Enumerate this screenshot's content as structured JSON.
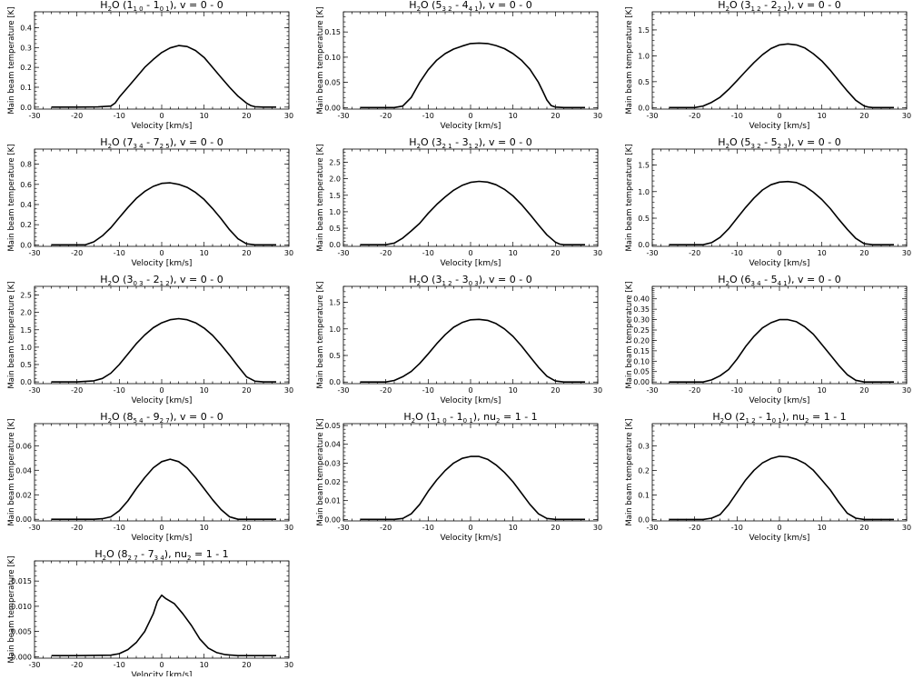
{
  "figure": {
    "xlabel": "Velocity [km/s]",
    "ylabel": "Main beam temperature [K]"
  },
  "chart_data": [
    {
      "type": "line",
      "title": "H₂O (1₁₀ - 1₀₁), v = 0 - 0",
      "title_parts": {
        "pre": "H",
        "sub1": "2",
        "mid": "O (1",
        "sub2": "1 0",
        "mid2": " - 1",
        "sub3": "0 1",
        "post": "), v = 0 - 0"
      },
      "xlabel": "Velocity [km/s]",
      "ylabel": "Main beam temperature [K]",
      "xlim": [
        -30,
        30
      ],
      "ylim": [
        -0.01,
        0.48
      ],
      "xticks": [
        -30,
        -20,
        -10,
        0,
        10,
        20,
        30
      ],
      "yticks": [
        0.0,
        0.1,
        0.2,
        0.3,
        0.4
      ],
      "ytick_labels": [
        "0.0",
        "0.1",
        "0.2",
        "0.3",
        "0.4"
      ],
      "x": [
        -26,
        -20,
        -15,
        -12,
        -11,
        -10,
        -8,
        -6,
        -4,
        -2,
        0,
        2,
        4,
        6,
        8,
        10,
        12,
        14,
        16,
        18,
        20,
        21,
        22,
        24,
        27
      ],
      "y": [
        0.0,
        0.0,
        0.001,
        0.005,
        0.02,
        0.05,
        0.1,
        0.15,
        0.2,
        0.24,
        0.275,
        0.298,
        0.31,
        0.305,
        0.285,
        0.25,
        0.2,
        0.15,
        0.1,
        0.055,
        0.02,
        0.008,
        0.002,
        0.0,
        0.0
      ]
    },
    {
      "type": "line",
      "title": "H₂O (5₃₂ - 4₄₁), v = 0 - 0",
      "title_parts": {
        "pre": "H",
        "sub1": "2",
        "mid": "O (5",
        "sub2": "3 2",
        "mid2": " - 4",
        "sub3": "4 1",
        "post": "), v = 0 - 0"
      },
      "xlabel": "Velocity [km/s]",
      "ylabel": "Main beam temperature [K]",
      "xlim": [
        -30,
        30
      ],
      "ylim": [
        -0.003,
        0.19
      ],
      "xticks": [
        -30,
        -20,
        -10,
        0,
        10,
        20,
        30
      ],
      "yticks": [
        0.0,
        0.05,
        0.1,
        0.15
      ],
      "ytick_labels": [
        "0.00",
        "0.05",
        "0.10",
        "0.15"
      ],
      "x": [
        -26,
        -18,
        -16,
        -14,
        -12,
        -10,
        -8,
        -6,
        -4,
        -2,
        0,
        2,
        4,
        6,
        8,
        10,
        12,
        14,
        16,
        17,
        18,
        19,
        20,
        22,
        27
      ],
      "y": [
        0.0,
        0.0,
        0.003,
        0.02,
        0.05,
        0.075,
        0.094,
        0.107,
        0.116,
        0.122,
        0.127,
        0.128,
        0.127,
        0.123,
        0.117,
        0.107,
        0.094,
        0.076,
        0.05,
        0.033,
        0.015,
        0.004,
        0.001,
        0.0,
        0.0
      ]
    },
    {
      "type": "line",
      "title": "H₂O (3₁₂ - 2₂₁), v = 0 - 0",
      "title_parts": {
        "pre": "H",
        "sub1": "2",
        "mid": "O (3",
        "sub2": "1 2",
        "mid2": " - 2",
        "sub3": "2 1",
        "post": "), v = 0 - 0"
      },
      "xlabel": "Velocity [km/s]",
      "ylabel": "Main beam temperature [K]",
      "xlim": [
        -30,
        30
      ],
      "ylim": [
        -0.03,
        1.85
      ],
      "xticks": [
        -30,
        -20,
        -10,
        0,
        10,
        20,
        30
      ],
      "yticks": [
        0.0,
        0.5,
        1.0,
        1.5
      ],
      "ytick_labels": [
        "0.0",
        "0.5",
        "1.0",
        "1.5"
      ],
      "x": [
        -26,
        -20,
        -18,
        -16,
        -14,
        -12,
        -10,
        -8,
        -6,
        -4,
        -2,
        0,
        2,
        4,
        6,
        8,
        10,
        12,
        14,
        16,
        18,
        20,
        21,
        22,
        24,
        27
      ],
      "y": [
        0.0,
        0.0,
        0.03,
        0.1,
        0.2,
        0.35,
        0.52,
        0.7,
        0.87,
        1.02,
        1.14,
        1.21,
        1.23,
        1.21,
        1.15,
        1.04,
        0.9,
        0.72,
        0.52,
        0.32,
        0.14,
        0.03,
        0.008,
        0.0,
        0.0,
        0.0
      ]
    },
    {
      "type": "line",
      "title": "H₂O (7₃₄ - 7₂₅), v = 0 - 0",
      "title_parts": {
        "pre": "H",
        "sub1": "2",
        "mid": "O (7",
        "sub2": "3 4",
        "mid2": " - 7",
        "sub3": "2 5",
        "post": "), v = 0 - 0"
      },
      "xlabel": "Velocity [km/s]",
      "ylabel": "Main beam temperature [K]",
      "xlim": [
        -30,
        30
      ],
      "ylim": [
        -0.015,
        0.95
      ],
      "xticks": [
        -30,
        -20,
        -10,
        0,
        10,
        20,
        30
      ],
      "yticks": [
        0.0,
        0.2,
        0.4,
        0.6,
        0.8
      ],
      "ytick_labels": [
        "0.0",
        "0.2",
        "0.4",
        "0.6",
        "0.8"
      ],
      "x": [
        -26,
        -18,
        -16,
        -14,
        -12,
        -10,
        -8,
        -6,
        -4,
        -2,
        0,
        2,
        4,
        6,
        8,
        10,
        12,
        14,
        16,
        18,
        20,
        22,
        24,
        27
      ],
      "y": [
        0.0,
        0.0,
        0.03,
        0.09,
        0.17,
        0.27,
        0.37,
        0.46,
        0.53,
        0.58,
        0.61,
        0.615,
        0.6,
        0.57,
        0.52,
        0.45,
        0.36,
        0.26,
        0.15,
        0.06,
        0.01,
        0.0,
        0.0,
        0.0
      ]
    },
    {
      "type": "line",
      "title": "H₂O (3₂₁ - 3₁₂), v = 0 - 0",
      "title_parts": {
        "pre": "H",
        "sub1": "2",
        "mid": "O (3",
        "sub2": "2 1",
        "mid2": " - 3",
        "sub3": "1 2",
        "post": "), v = 0 - 0"
      },
      "xlabel": "Velocity [km/s]",
      "ylabel": "Main beam temperature [K]",
      "xlim": [
        -30,
        30
      ],
      "ylim": [
        -0.05,
        2.9
      ],
      "xticks": [
        -30,
        -20,
        -10,
        0,
        10,
        20,
        30
      ],
      "yticks": [
        0.0,
        0.5,
        1.0,
        1.5,
        2.0,
        2.5
      ],
      "ytick_labels": [
        "0.0",
        "0.5",
        "1.0",
        "1.5",
        "2.0",
        "2.5"
      ],
      "x": [
        -26,
        -20,
        -18,
        -16,
        -14,
        -12,
        -10,
        -8,
        -6,
        -4,
        -2,
        0,
        2,
        4,
        6,
        8,
        10,
        12,
        14,
        16,
        18,
        20,
        21,
        22,
        24,
        27
      ],
      "y": [
        0.0,
        0.0,
        0.05,
        0.2,
        0.42,
        0.65,
        0.95,
        1.22,
        1.45,
        1.65,
        1.8,
        1.89,
        1.92,
        1.9,
        1.82,
        1.68,
        1.48,
        1.22,
        0.92,
        0.6,
        0.3,
        0.08,
        0.02,
        0.0,
        0.0,
        0.0
      ]
    },
    {
      "type": "line",
      "title": "H₂O (5₃₂ - 5₂₃), v = 0 - 0",
      "title_parts": {
        "pre": "H",
        "sub1": "2",
        "mid": "O (5",
        "sub2": "3 2",
        "mid2": " - 5",
        "sub3": "2 3",
        "post": "), v = 0 - 0"
      },
      "xlabel": "Velocity [km/s]",
      "ylabel": "Main beam temperature [K]",
      "xlim": [
        -30,
        30
      ],
      "ylim": [
        -0.03,
        1.8
      ],
      "xticks": [
        -30,
        -20,
        -10,
        0,
        10,
        20,
        30
      ],
      "yticks": [
        0.0,
        0.5,
        1.0,
        1.5
      ],
      "ytick_labels": [
        "0.0",
        "0.5",
        "1.0",
        "1.5"
      ],
      "x": [
        -26,
        -18,
        -16,
        -14,
        -12,
        -10,
        -8,
        -6,
        -4,
        -2,
        0,
        2,
        4,
        6,
        8,
        10,
        12,
        14,
        16,
        18,
        20,
        22,
        24,
        27
      ],
      "y": [
        0.0,
        0.0,
        0.04,
        0.14,
        0.3,
        0.5,
        0.7,
        0.88,
        1.03,
        1.13,
        1.18,
        1.19,
        1.17,
        1.1,
        0.99,
        0.85,
        0.68,
        0.48,
        0.29,
        0.12,
        0.02,
        0.0,
        0.0,
        0.0
      ]
    },
    {
      "type": "line",
      "title": "H₂O (3₀₃ - 2₁₂), v = 0 - 0",
      "title_parts": {
        "pre": "H",
        "sub1": "2",
        "mid": "O (3",
        "sub2": "0 3",
        "mid2": " - 2",
        "sub3": "1 2",
        "post": "), v = 0 - 0"
      },
      "xlabel": "Velocity [km/s]",
      "ylabel": "Main beam temperature [K]",
      "xlim": [
        -30,
        30
      ],
      "ylim": [
        -0.05,
        2.75
      ],
      "xticks": [
        -30,
        -20,
        -10,
        0,
        10,
        20,
        30
      ],
      "yticks": [
        0.0,
        0.5,
        1.0,
        1.5,
        2.0,
        2.5
      ],
      "ytick_labels": [
        "0.0",
        "0.5",
        "1.0",
        "1.5",
        "2.0",
        "2.5"
      ],
      "x": [
        -26,
        -20,
        -16,
        -14,
        -12,
        -10,
        -8,
        -6,
        -4,
        -2,
        0,
        2,
        4,
        6,
        8,
        10,
        12,
        14,
        16,
        18,
        20,
        22,
        24,
        27
      ],
      "y": [
        0.0,
        0.0,
        0.03,
        0.1,
        0.25,
        0.5,
        0.8,
        1.1,
        1.35,
        1.56,
        1.7,
        1.79,
        1.82,
        1.79,
        1.7,
        1.55,
        1.34,
        1.07,
        0.77,
        0.45,
        0.15,
        0.02,
        0.0,
        0.0
      ]
    },
    {
      "type": "line",
      "title": "H₂O (3₁₂ - 3₀₃), v = 0 - 0",
      "title_parts": {
        "pre": "H",
        "sub1": "2",
        "mid": "O (3",
        "sub2": "1 2",
        "mid2": " - 3",
        "sub3": "0 3",
        "post": "), v = 0 - 0"
      },
      "xlabel": "Velocity [km/s]",
      "ylabel": "Main beam temperature [K]",
      "xlim": [
        -30,
        30
      ],
      "ylim": [
        -0.03,
        1.8
      ],
      "xticks": [
        -30,
        -20,
        -10,
        0,
        10,
        20,
        30
      ],
      "yticks": [
        0.0,
        0.5,
        1.0,
        1.5
      ],
      "ytick_labels": [
        "0.0",
        "0.5",
        "1.0",
        "1.5"
      ],
      "x": [
        -26,
        -20,
        -18,
        -16,
        -14,
        -12,
        -10,
        -8,
        -6,
        -4,
        -2,
        0,
        2,
        4,
        6,
        8,
        10,
        12,
        14,
        16,
        18,
        20,
        22,
        24,
        27
      ],
      "y": [
        0.0,
        0.0,
        0.03,
        0.1,
        0.2,
        0.35,
        0.53,
        0.72,
        0.89,
        1.03,
        1.12,
        1.17,
        1.18,
        1.16,
        1.1,
        1.0,
        0.86,
        0.68,
        0.48,
        0.28,
        0.11,
        0.02,
        0.0,
        0.0,
        0.0
      ]
    },
    {
      "type": "line",
      "title": "H₂O (6₃₄ - 5₄₁), v = 0 - 0",
      "title_parts": {
        "pre": "H",
        "sub1": "2",
        "mid": "O (6",
        "sub2": "3 4",
        "mid2": " - 5",
        "sub3": "4 1",
        "post": "), v = 0 - 0"
      },
      "xlabel": "Velocity [km/s]",
      "ylabel": "Main beam temperature [K]",
      "xlim": [
        -30,
        30
      ],
      "ylim": [
        -0.008,
        0.46
      ],
      "xticks": [
        -30,
        -20,
        -10,
        0,
        10,
        20,
        30
      ],
      "yticks": [
        0.0,
        0.05,
        0.1,
        0.15,
        0.2,
        0.25,
        0.3,
        0.35,
        0.4
      ],
      "ytick_labels": [
        "0.00",
        "0.05",
        "0.10",
        "0.15",
        "0.20",
        "0.25",
        "0.30",
        "0.35",
        "0.40"
      ],
      "x": [
        -26,
        -18,
        -16,
        -14,
        -12,
        -10,
        -8,
        -6,
        -4,
        -2,
        0,
        2,
        4,
        6,
        8,
        10,
        12,
        14,
        16,
        18,
        20,
        22,
        24,
        27
      ],
      "y": [
        0.0,
        0.0,
        0.01,
        0.03,
        0.06,
        0.11,
        0.17,
        0.22,
        0.26,
        0.285,
        0.3,
        0.3,
        0.29,
        0.265,
        0.23,
        0.18,
        0.13,
        0.08,
        0.035,
        0.008,
        0.0,
        0.0,
        0.0,
        0.0
      ]
    },
    {
      "type": "line",
      "title": "H₂O (8₅₄ - 9₂₇), v = 0 - 0",
      "title_parts": {
        "pre": "H",
        "sub1": "2",
        "mid": "O (8",
        "sub2": "5 4",
        "mid2": " - 9",
        "sub3": "2 7",
        "post": "), v = 0 - 0"
      },
      "xlabel": "Velocity [km/s]",
      "ylabel": "Main beam temperature [K]",
      "xlim": [
        -30,
        30
      ],
      "ylim": [
        -0.0013,
        0.078
      ],
      "xticks": [
        -30,
        -20,
        -10,
        0,
        10,
        20,
        30
      ],
      "yticks": [
        0.0,
        0.02,
        0.04,
        0.06
      ],
      "ytick_labels": [
        "0.00",
        "0.02",
        "0.04",
        "0.06"
      ],
      "x": [
        -26,
        -16,
        -14,
        -12,
        -10,
        -8,
        -6,
        -4,
        -2,
        0,
        2,
        4,
        6,
        8,
        10,
        12,
        14,
        16,
        18,
        20,
        22,
        27
      ],
      "y": [
        0.0,
        0.0,
        0.0005,
        0.002,
        0.007,
        0.015,
        0.025,
        0.034,
        0.042,
        0.047,
        0.049,
        0.047,
        0.042,
        0.034,
        0.025,
        0.016,
        0.008,
        0.002,
        0.0,
        0.0,
        0.0,
        0.0
      ]
    },
    {
      "type": "line",
      "title": "H₂O (1₁₀ - 1₀₁), nu₂ = 1 - 1",
      "title_parts": {
        "pre": "H",
        "sub1": "2",
        "mid": "O (1",
        "sub2": "1 0",
        "mid2": " - 1",
        "sub3": "0 1",
        "post": "), nu",
        "sub4": "2",
        "post2": " = 1 - 1"
      },
      "xlabel": "Velocity [km/s]",
      "ylabel": "Main beam temperature [K]",
      "xlim": [
        -30,
        30
      ],
      "ylim": [
        -0.0008,
        0.051
      ],
      "xticks": [
        -30,
        -20,
        -10,
        0,
        10,
        20,
        30
      ],
      "yticks": [
        0.0,
        0.01,
        0.02,
        0.03,
        0.04,
        0.05
      ],
      "ytick_labels": [
        "0.00",
        "0.01",
        "0.02",
        "0.03",
        "0.04",
        "0.05"
      ],
      "x": [
        -26,
        -18,
        -16,
        -14,
        -12,
        -10,
        -8,
        -6,
        -4,
        -2,
        0,
        2,
        4,
        6,
        8,
        10,
        12,
        14,
        16,
        18,
        20,
        22,
        27
      ],
      "y": [
        0.0,
        0.0,
        0.0005,
        0.003,
        0.008,
        0.015,
        0.021,
        0.026,
        0.03,
        0.0325,
        0.0335,
        0.0335,
        0.032,
        0.029,
        0.025,
        0.02,
        0.014,
        0.008,
        0.003,
        0.0005,
        0.0,
        0.0,
        0.0
      ]
    },
    {
      "type": "line",
      "title": "H₂O (2₁₂ - 1₀₁), nu₂ = 1 - 1",
      "title_parts": {
        "pre": "H",
        "sub1": "2",
        "mid": "O (2",
        "sub2": "1 2",
        "mid2": " - 1",
        "sub3": "0 1",
        "post": "), nu",
        "sub4": "2",
        "post2": " = 1 - 1"
      },
      "xlabel": "Velocity [km/s]",
      "ylabel": "Main beam temperature [K]",
      "xlim": [
        -30,
        30
      ],
      "ylim": [
        -0.006,
        0.39
      ],
      "xticks": [
        -30,
        -20,
        -10,
        0,
        10,
        20,
        30
      ],
      "yticks": [
        0.0,
        0.1,
        0.2,
        0.3
      ],
      "ytick_labels": [
        "0.0",
        "0.1",
        "0.2",
        "0.3"
      ],
      "x": [
        -26,
        -18,
        -16,
        -14,
        -12,
        -10,
        -8,
        -6,
        -4,
        -2,
        0,
        2,
        4,
        6,
        8,
        10,
        12,
        14,
        16,
        18,
        20,
        22,
        27
      ],
      "y": [
        0.0,
        0.0,
        0.005,
        0.02,
        0.06,
        0.11,
        0.16,
        0.2,
        0.23,
        0.248,
        0.257,
        0.255,
        0.245,
        0.228,
        0.2,
        0.16,
        0.12,
        0.07,
        0.025,
        0.005,
        0.0,
        0.0,
        0.0
      ]
    },
    {
      "type": "line",
      "title": "H₂O (8₂₇ - 7₃₄), nu₂ = 1 - 1",
      "title_parts": {
        "pre": "H",
        "sub1": "2",
        "mid": "O (8",
        "sub2": "2 7",
        "mid2": " - 7",
        "sub3": "3 4",
        "post": "), nu",
        "sub4": "2",
        "post2": " = 1 - 1"
      },
      "xlabel": "Velocity [km/s]",
      "ylabel": "Main beam temperature [K]",
      "xlim": [
        -30,
        30
      ],
      "ylim": [
        -0.0003,
        0.019
      ],
      "xticks": [
        -30,
        -20,
        -10,
        0,
        10,
        20,
        30
      ],
      "yticks": [
        0.0,
        0.005,
        0.01,
        0.015
      ],
      "ytick_labels": [
        "0.000",
        "0.005",
        "0.010",
        "0.015"
      ],
      "x": [
        -26,
        -20,
        -12,
        -10,
        -8,
        -6,
        -4,
        -2,
        -1,
        0,
        1,
        3,
        5,
        7,
        9,
        11,
        13,
        15,
        18,
        27
      ],
      "y": [
        0.0002,
        0.0002,
        0.0003,
        0.0006,
        0.0014,
        0.0028,
        0.005,
        0.0085,
        0.011,
        0.0122,
        0.0115,
        0.0105,
        0.0085,
        0.0062,
        0.0035,
        0.0017,
        0.0008,
        0.0004,
        0.0002,
        0.0002
      ]
    }
  ]
}
